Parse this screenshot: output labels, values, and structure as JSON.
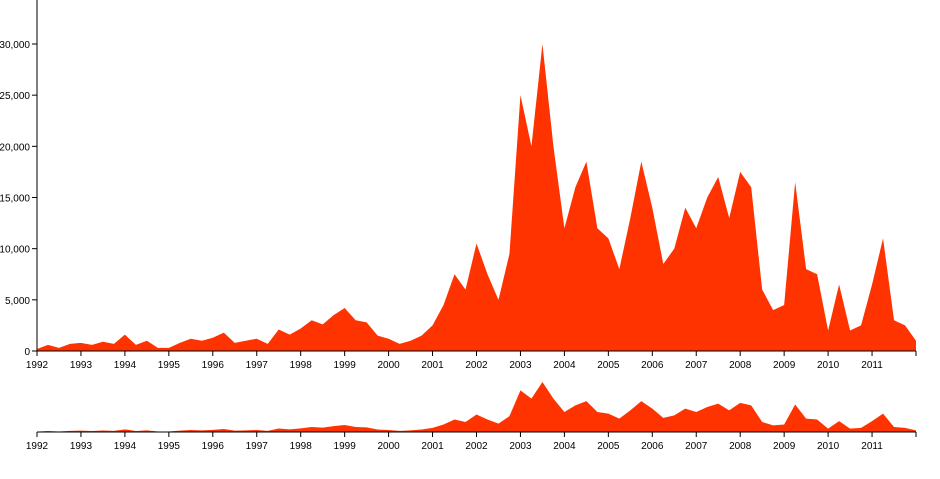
{
  "chart_data": {
    "type": "area",
    "color": "#ff3300",
    "x": [
      1992,
      1992.25,
      1992.5,
      1992.75,
      1993,
      1993.25,
      1993.5,
      1993.75,
      1994,
      1994.25,
      1994.5,
      1994.75,
      1995,
      1995.25,
      1995.5,
      1995.75,
      1996,
      1996.25,
      1996.5,
      1996.75,
      1997,
      1997.25,
      1997.5,
      1997.75,
      1998,
      1998.25,
      1998.5,
      1998.75,
      1999,
      1999.25,
      1999.5,
      1999.75,
      2000,
      2000.25,
      2000.5,
      2000.75,
      2001,
      2001.25,
      2001.5,
      2001.75,
      2002,
      2002.25,
      2002.5,
      2002.75,
      2003,
      2003.25,
      2003.5,
      2003.75,
      2004,
      2004.25,
      2004.5,
      2004.75,
      2005,
      2005.25,
      2005.5,
      2005.75,
      2006,
      2006.25,
      2006.5,
      2006.75,
      2007,
      2007.25,
      2007.5,
      2007.75,
      2008,
      2008.25,
      2008.5,
      2008.75,
      2009,
      2009.25,
      2009.5,
      2009.75,
      2010,
      2010.25,
      2010.5,
      2010.75,
      2011,
      2011.25,
      2011.5,
      2011.75,
      2012
    ],
    "values": [
      200,
      600,
      300,
      700,
      800,
      600,
      900,
      700,
      1600,
      600,
      1000,
      300,
      300,
      800,
      1200,
      1000,
      1300,
      1800,
      800,
      1000,
      1200,
      700,
      2100,
      1600,
      2200,
      3000,
      2600,
      3500,
      4200,
      3000,
      2800,
      1500,
      1200,
      700,
      1000,
      1500,
      2500,
      4500,
      7500,
      6000,
      10500,
      7500,
      5000,
      9500,
      25000,
      20000,
      30000,
      20000,
      12000,
      16000,
      18500,
      12000,
      11000,
      8000,
      13000,
      18500,
      14000,
      8500,
      10000,
      14000,
      12000,
      15000,
      17000,
      13000,
      17500,
      16000,
      6000,
      4000,
      4500,
      16500,
      8000,
      7500,
      2000,
      6500,
      2000,
      2500,
      6500,
      11000,
      3000,
      2500,
      1000
    ],
    "xlim": [
      1992,
      2012
    ],
    "xticks": [
      1992,
      1993,
      1994,
      1995,
      1996,
      1997,
      1998,
      1999,
      2000,
      2001,
      2002,
      2003,
      2004,
      2005,
      2006,
      2007,
      2008,
      2009,
      2010,
      2011
    ],
    "ylim": [
      0,
      30000
    ],
    "yticks": [
      0,
      {
        "value": 5000,
        "label": "5,000"
      },
      {
        "value": 10000,
        "label": "10,000"
      },
      {
        "value": 15000,
        "label": "15,000"
      },
      {
        "value": 20000,
        "label": "20,000"
      },
      {
        "value": 25000,
        "label": "25,000"
      },
      {
        "value": 30000,
        "label": "30,000"
      }
    ]
  }
}
